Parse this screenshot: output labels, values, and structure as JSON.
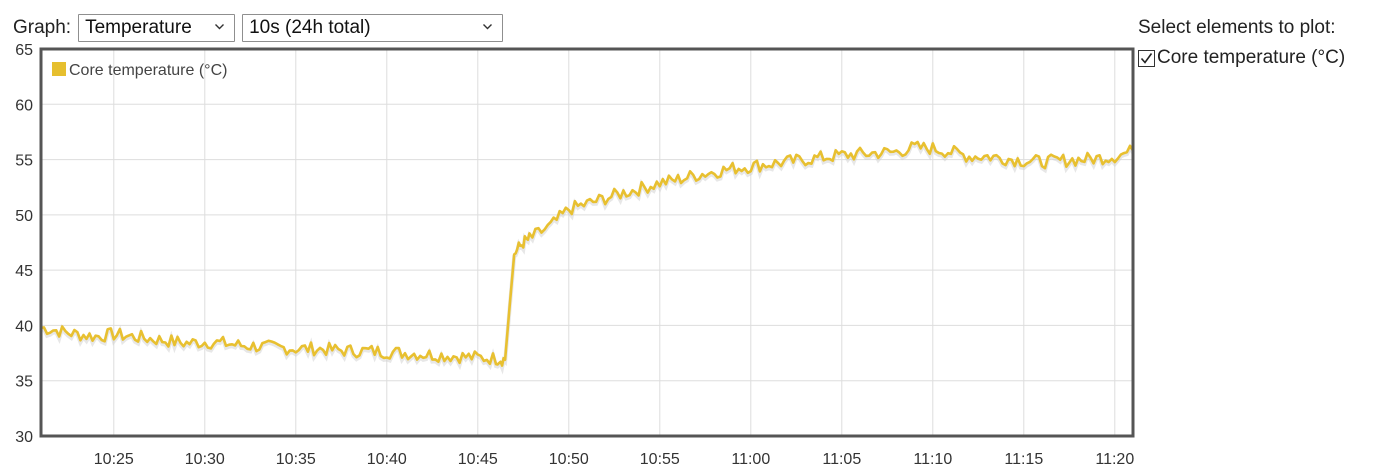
{
  "controls": {
    "graph_label": "Graph:",
    "graph_select": "Temperature",
    "interval_select": "10s (24h total)"
  },
  "side_panel": {
    "title": "Select elements to plot:",
    "items": [
      {
        "label": "Core temperature (°C)",
        "checked": true
      }
    ]
  },
  "colors": {
    "series": "#e8c030",
    "legend_swatch": "#e6bf2e",
    "grid": "#dddddd",
    "frame": "#555555"
  },
  "chart_data": {
    "type": "line",
    "ylim": [
      30,
      65
    ],
    "yticks": [
      30,
      35,
      40,
      45,
      50,
      55,
      60,
      65
    ],
    "xlim": [
      "10:21",
      "11:21"
    ],
    "xticks": [
      "10:25",
      "10:30",
      "10:35",
      "10:40",
      "10:45",
      "10:50",
      "10:55",
      "11:00",
      "11:05",
      "11:10",
      "11:15",
      "11:20"
    ],
    "grid": true,
    "legend_position": "top-left",
    "series": [
      {
        "name": "Core temperature (°C)",
        "x": [
          "10:21",
          "10:22",
          "10:23",
          "10:24",
          "10:25",
          "10:26",
          "10:27",
          "10:28",
          "10:29",
          "10:30",
          "10:31",
          "10:32",
          "10:33",
          "10:34",
          "10:35",
          "10:36",
          "10:37",
          "10:38",
          "10:39",
          "10:40",
          "10:41",
          "10:42",
          "10:43",
          "10:44",
          "10:45",
          "10:46",
          "10:46.5",
          "10:47",
          "10:47.5",
          "10:48",
          "10:49",
          "10:50",
          "10:51",
          "10:52",
          "10:53",
          "10:54",
          "10:55",
          "10:56",
          "10:57",
          "10:58",
          "10:59",
          "11:00",
          "11:01",
          "11:02",
          "11:03",
          "11:04",
          "11:05",
          "11:06",
          "11:07",
          "11:08",
          "11:09",
          "11:10",
          "11:11",
          "11:12",
          "11:13",
          "11:14",
          "11:15",
          "11:16",
          "11:17",
          "11:18",
          "11:19",
          "11:20",
          "11:21"
        ],
        "values": [
          39.8,
          39.5,
          39.2,
          39.0,
          39.2,
          39.0,
          38.8,
          38.6,
          38.4,
          38.5,
          38.4,
          38.2,
          38.1,
          38.0,
          37.9,
          37.9,
          37.8,
          37.7,
          37.7,
          37.6,
          37.5,
          37.4,
          37.3,
          37.2,
          37.1,
          37.0,
          36.9,
          46.5,
          47.5,
          48.0,
          49.0,
          50.5,
          51.0,
          51.5,
          52.0,
          52.4,
          52.9,
          53.2,
          53.6,
          53.9,
          54.2,
          54.4,
          54.6,
          54.8,
          55.0,
          55.2,
          55.4,
          55.5,
          55.6,
          55.7,
          56.1,
          56.0,
          55.7,
          55.3,
          55.3,
          55.1,
          54.9,
          54.8,
          54.9,
          55.0,
          55.1,
          55.3,
          55.8
        ]
      }
    ]
  }
}
